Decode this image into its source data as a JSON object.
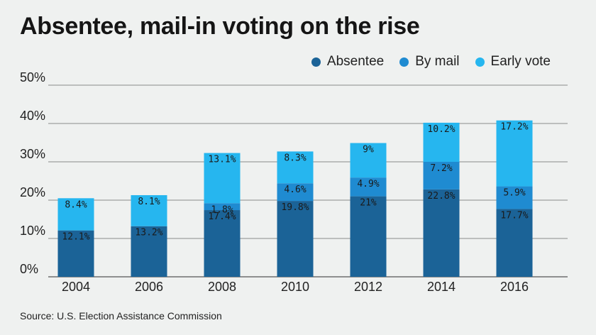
{
  "title": "Absentee, mail-in voting on the rise",
  "source": "Source: U.S. Election Assistance Commission",
  "legend": [
    {
      "label": "Absentee",
      "color": "#1b6397"
    },
    {
      "label": "By mail",
      "color": "#1f8bd1"
    },
    {
      "label": "Early vote",
      "color": "#26b6ef"
    }
  ],
  "chart_data": {
    "type": "bar",
    "stacked": true,
    "title": "Absentee, mail-in voting on the rise",
    "xlabel": "",
    "ylabel": "",
    "ylim": [
      0,
      50
    ],
    "yticks": [
      0,
      10,
      20,
      30,
      40,
      50
    ],
    "ytick_labels": [
      "0%",
      "10%",
      "20%",
      "30%",
      "40%",
      "50%"
    ],
    "grid": true,
    "legend_position": "top-right",
    "categories": [
      "2004",
      "2006",
      "2008",
      "2010",
      "2012",
      "2014",
      "2016"
    ],
    "series": [
      {
        "name": "Absentee",
        "color": "#1b6397",
        "values": [
          12.1,
          13.2,
          17.4,
          19.8,
          21,
          22.8,
          17.7
        ],
        "labels": [
          "12.1%",
          "13.2%",
          "17.4%",
          "19.8%",
          "21%",
          "22.8%",
          "17.7%"
        ]
      },
      {
        "name": "By mail",
        "color": "#1f8bd1",
        "values": [
          0,
          0,
          1.8,
          4.6,
          4.9,
          7.2,
          5.9
        ],
        "labels": [
          "",
          "",
          "1.8%",
          "4.6%",
          "4.9%",
          "7.2%",
          "5.9%"
        ]
      },
      {
        "name": "Early vote",
        "color": "#26b6ef",
        "values": [
          8.4,
          8.1,
          13.1,
          8.3,
          9,
          10.2,
          17.2
        ],
        "labels": [
          "8.4%",
          "8.1%",
          "13.1%",
          "8.3%",
          "9%",
          "10.2%",
          "17.2%"
        ]
      }
    ]
  }
}
